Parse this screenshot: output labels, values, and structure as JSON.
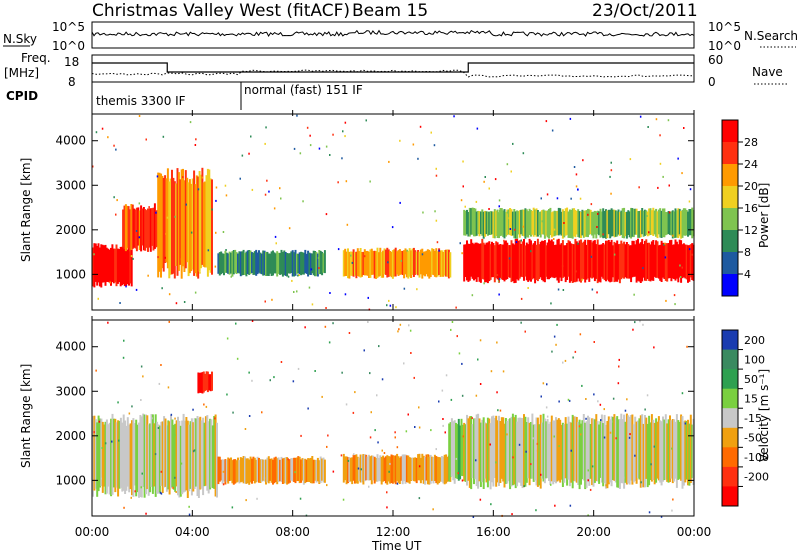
{
  "header": {
    "title": "Christmas Valley West (fitACF)",
    "beam": "Beam 15",
    "date": "23/Oct/2011"
  },
  "top_panels": {
    "noise_label": "N.Sky",
    "noise_ticks": [
      "10^5",
      "10^0"
    ],
    "noise_right_ticks": [
      "10^5",
      "10^0"
    ],
    "noise_right_label": "N.Search",
    "freq_label": "Freq.",
    "freq_unit": "[MHz]",
    "freq_ticks": [
      "18",
      "8"
    ],
    "nave_ticks": [
      "60",
      "0"
    ],
    "nave_label": "Nave",
    "cpid_label": "CPID",
    "cpid_1": "themis 3300 IF",
    "cpid_2": "normal (fast) 151 IF"
  },
  "chart_data": [
    {
      "type": "heatmap",
      "name": "power",
      "ylabel": "Slant Range [km]",
      "yticks": [
        "1000",
        "2000",
        "3000",
        "4000"
      ],
      "ylim": [
        200,
        4600
      ],
      "xlim": [
        0,
        24
      ],
      "colorbar_label": "Power [dB]",
      "colorbar_ticks": [
        "4",
        "8",
        "12",
        "16",
        "20",
        "24",
        "28"
      ],
      "colors": [
        "#0000ff",
        "#1e5aa0",
        "#2e8b57",
        "#7fc450",
        "#f0d020",
        "#ff9a00",
        "#ff3010",
        "#ff0000"
      ],
      "regions": [
        {
          "t0": 0.0,
          "t1": 1.6,
          "r0": 700,
          "r1": 1700,
          "level": 7
        },
        {
          "t0": 1.2,
          "t1": 2.8,
          "r0": 1500,
          "r1": 2600,
          "level": 6
        },
        {
          "t0": 2.6,
          "t1": 4.8,
          "r0": 900,
          "r1": 3400,
          "level": 5
        },
        {
          "t0": 5.0,
          "t1": 9.3,
          "r0": 950,
          "r1": 1550,
          "level": 2
        },
        {
          "t0": 10.0,
          "t1": 14.3,
          "r0": 900,
          "r1": 1600,
          "level": 5
        },
        {
          "t0": 14.8,
          "t1": 24.0,
          "r0": 800,
          "r1": 1800,
          "level": 7
        },
        {
          "t0": 14.8,
          "t1": 24.0,
          "r0": 1800,
          "r1": 2500,
          "level": 3
        }
      ]
    },
    {
      "type": "heatmap",
      "name": "velocity",
      "ylabel": "Slant Range [km]",
      "yticks": [
        "1000",
        "2000",
        "3000",
        "4000"
      ],
      "ylim": [
        200,
        4600
      ],
      "xlim": [
        0,
        24
      ],
      "xlabel": "Time UT",
      "xticks": [
        "00:00",
        "04:00",
        "08:00",
        "12:00",
        "16:00",
        "20:00",
        "00:00"
      ],
      "colorbar_label": "Velocity [m s⁻¹]",
      "colorbar_ticks": [
        "200",
        "100",
        "50",
        "15",
        "-15",
        "-50",
        "-100",
        "-200"
      ],
      "colors": [
        "#1a3cb0",
        "#3a8a60",
        "#2ea050",
        "#7ad040",
        "#c8c8c8",
        "#f0a010",
        "#ff6a00",
        "#ff3010",
        "#ff0000"
      ],
      "regions": [
        {
          "t0": 0.0,
          "t1": 5.0,
          "r0": 600,
          "r1": 2500,
          "level": 4
        },
        {
          "t0": 4.2,
          "t1": 4.8,
          "r0": 2950,
          "r1": 3450,
          "level": 8
        },
        {
          "t0": 5.0,
          "t1": 9.3,
          "r0": 900,
          "r1": 1550,
          "level": 5
        },
        {
          "t0": 10.0,
          "t1": 14.3,
          "r0": 900,
          "r1": 1600,
          "level": 5
        },
        {
          "t0": 14.2,
          "t1": 14.8,
          "r0": 900,
          "r1": 2400,
          "level": 3
        },
        {
          "t0": 14.8,
          "t1": 24.0,
          "r0": 800,
          "r1": 2500,
          "level": 4
        }
      ]
    }
  ]
}
